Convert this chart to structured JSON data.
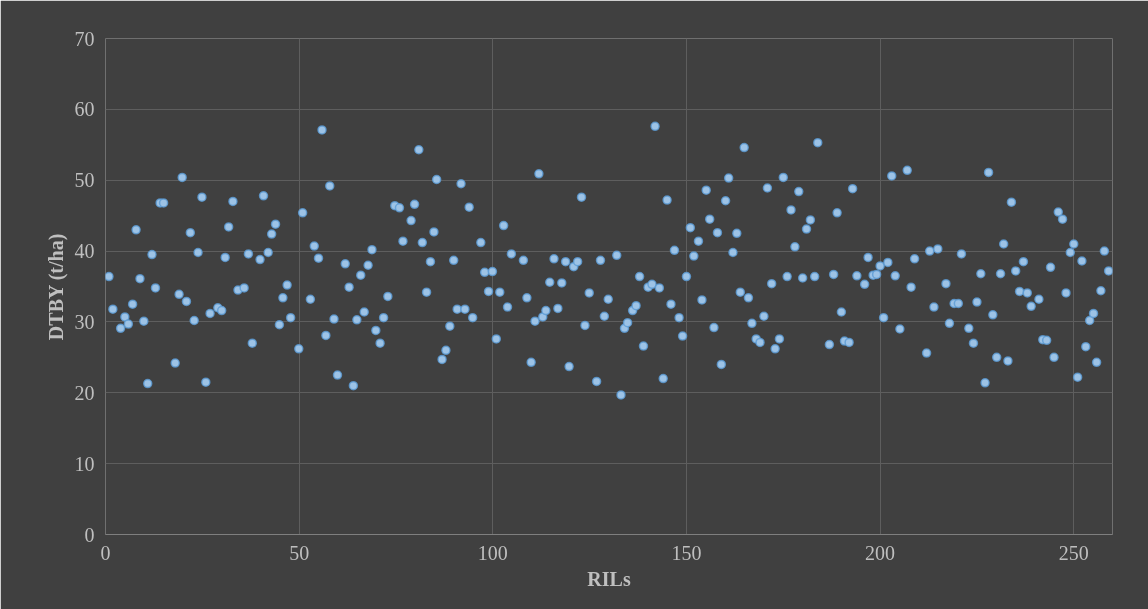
{
  "chart_data": {
    "type": "scatter",
    "xlabel": "RILs",
    "ylabel": "DTBY (t/ha)",
    "xlim": [
      0,
      260
    ],
    "xticks": [
      0,
      50,
      100,
      150,
      200,
      250
    ],
    "ylim": [
      0,
      70
    ],
    "yticks": [
      0,
      10,
      20,
      30,
      40,
      50,
      60,
      70
    ],
    "grid": true,
    "marker": "circle",
    "series": [
      {
        "color": "#9dc3e6",
        "x": [
          0.9,
          1.9,
          3.9,
          5.0,
          5.9,
          7.0,
          7.9,
          8.9,
          9.9,
          10.9,
          12.0,
          12.9,
          14.1,
          15.0,
          18.0,
          19.0,
          19.8,
          20.9,
          21.9,
          22.9,
          23.9,
          24.9,
          25.9,
          27.0,
          29.0,
          30.0,
          30.9,
          31.8,
          32.9,
          34.2,
          35.8,
          36.9,
          37.9,
          39.9,
          40.8,
          42.0,
          42.9,
          43.9,
          44.9,
          45.8,
          46.9,
          47.8,
          49.9,
          50.9,
          52.9,
          53.9,
          55.0,
          55.9,
          56.9,
          57.9,
          59.0,
          59.9,
          61.9,
          62.9,
          64.0,
          64.9,
          65.9,
          66.8,
          67.8,
          68.8,
          69.8,
          70.9,
          71.8,
          72.9,
          74.7,
          75.9,
          76.8,
          78.9,
          79.8,
          80.9,
          81.8,
          82.9,
          83.9,
          84.8,
          85.5,
          86.9,
          87.9,
          88.9,
          89.9,
          90.8,
          91.8,
          92.8,
          93.9,
          94.8,
          96.9,
          97.9,
          98.9,
          99.9,
          100.9,
          101.8,
          102.8,
          103.8,
          104.8,
          107.9,
          108.8,
          109.9,
          110.9,
          111.9,
          112.9,
          113.7,
          114.7,
          115.8,
          116.8,
          117.8,
          118.8,
          119.7,
          120.9,
          121.9,
          122.9,
          123.8,
          124.9,
          126.8,
          127.8,
          128.8,
          129.8,
          132.0,
          133.1,
          134.0,
          134.8,
          136.1,
          137.0,
          137.9,
          138.9,
          140.1,
          141.1,
          141.9,
          143.0,
          144.0,
          145.0,
          146.0,
          146.9,
          148.1,
          149.0,
          150.0,
          151.0,
          151.9,
          153.1,
          154.0,
          155.1,
          156.0,
          157.1,
          158.0,
          159.0,
          160.1,
          160.9,
          162.0,
          163.0,
          163.9,
          164.9,
          166.0,
          166.9,
          168.0,
          169.0,
          170.0,
          170.9,
          172.0,
          172.9,
          174.0,
          175.0,
          176.0,
          177.0,
          178.0,
          179.0,
          180.0,
          181.0,
          182.0,
          183.1,
          183.9,
          186.9,
          188.0,
          188.9,
          190.0,
          190.8,
          192.0,
          192.9,
          194.0,
          196.0,
          196.9,
          198.2,
          199.1,
          200.0,
          200.9,
          202.0,
          203.0,
          203.9,
          205.1,
          207.0,
          208.0,
          208.9,
          212.0,
          212.8,
          213.9,
          214.9,
          217.0,
          217.9,
          219.1,
          220.2,
          221.0,
          222.9,
          224.1,
          225.0,
          226.0,
          227.1,
          228.0,
          229.1,
          230.1,
          231.1,
          231.9,
          233.0,
          233.9,
          235.0,
          236.0,
          237.0,
          238.0,
          239.0,
          241.0,
          242.0,
          243.0,
          244.0,
          244.9,
          246.0,
          247.1,
          248.0,
          249.1,
          250.0,
          251.0,
          252.1,
          253.1,
          254.1,
          255.1,
          255.9,
          257.0,
          257.9,
          259.0
        ],
        "values": [
          36.4,
          31.8,
          29.1,
          30.7,
          29.7,
          32.5,
          43.0,
          36.1,
          30.1,
          21.3,
          39.5,
          34.8,
          46.8,
          46.8,
          24.2,
          33.9,
          50.4,
          32.9,
          42.6,
          30.2,
          39.8,
          47.6,
          21.5,
          31.2,
          32.0,
          31.6,
          39.1,
          43.4,
          47.0,
          34.5,
          34.8,
          39.6,
          27.0,
          38.8,
          47.8,
          39.8,
          42.4,
          43.8,
          29.6,
          33.4,
          35.2,
          30.6,
          26.2,
          45.4,
          33.2,
          40.7,
          39.0,
          57.1,
          28.1,
          49.2,
          30.4,
          22.5,
          38.2,
          34.9,
          21.0,
          30.3,
          36.6,
          31.4,
          38.0,
          40.2,
          28.8,
          27.0,
          30.6,
          33.6,
          46.4,
          46.1,
          41.4,
          44.3,
          46.6,
          54.3,
          41.2,
          34.2,
          38.5,
          42.7,
          50.1,
          24.7,
          26.0,
          29.4,
          38.7,
          31.8,
          49.5,
          31.8,
          46.2,
          30.6,
          41.2,
          37.0,
          34.3,
          37.1,
          27.6,
          34.2,
          43.6,
          32.1,
          39.6,
          38.7,
          33.4,
          24.3,
          30.1,
          50.9,
          30.7,
          31.6,
          35.6,
          38.9,
          31.9,
          35.5,
          38.5,
          23.7,
          37.8,
          38.5,
          47.6,
          29.5,
          34.1,
          21.6,
          38.7,
          30.8,
          33.2,
          39.4,
          19.7,
          29.1,
          29.9,
          31.6,
          32.3,
          36.4,
          26.6,
          34.9,
          35.3,
          57.6,
          34.8,
          22.0,
          47.2,
          32.5,
          40.1,
          30.6,
          28.0,
          36.4,
          43.3,
          39.3,
          41.4,
          33.1,
          48.6,
          44.5,
          29.2,
          42.6,
          24.0,
          47.1,
          50.3,
          39.8,
          42.5,
          34.2,
          54.6,
          33.4,
          29.8,
          27.6,
          27.1,
          30.8,
          48.9,
          35.4,
          26.2,
          27.6,
          50.4,
          36.4,
          45.8,
          40.6,
          48.4,
          36.2,
          43.1,
          44.4,
          36.4,
          55.3,
          26.8,
          36.7,
          45.4,
          31.4,
          27.3,
          27.1,
          48.8,
          36.5,
          35.3,
          39.1,
          36.6,
          36.7,
          37.9,
          30.6,
          38.4,
          50.6,
          36.5,
          29.0,
          51.4,
          34.9,
          38.9,
          25.6,
          40.0,
          32.1,
          40.3,
          35.4,
          29.8,
          32.6,
          32.6,
          39.6,
          29.1,
          27.0,
          32.8,
          36.8,
          21.4,
          51.1,
          31.0,
          25.0,
          36.8,
          41.0,
          24.5,
          46.9,
          37.2,
          34.3,
          38.5,
          34.1,
          32.2,
          33.2,
          27.5,
          27.4,
          37.7,
          25.0,
          45.5,
          44.5,
          34.1,
          39.8,
          41.0,
          22.2,
          38.6,
          26.5,
          30.2,
          31.2,
          24.3,
          34.4,
          40.0,
          37.2
        ]
      }
    ]
  }
}
